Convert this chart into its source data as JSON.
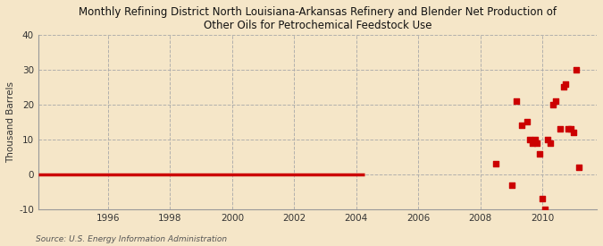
{
  "title": "Monthly Refining District North Louisiana-Arkansas Refinery and Blender Net Production of\nOther Oils for Petrochemical Feedstock Use",
  "ylabel": "Thousand Barrels",
  "source": "Source: U.S. Energy Information Administration",
  "fig_bg_color": "#f5e6c8",
  "plot_bg_color": "#f5e6c8",
  "ylim": [
    -10,
    40
  ],
  "xlim_start": 1993.75,
  "xlim_end": 2011.75,
  "yticks": [
    -10,
    0,
    10,
    20,
    30,
    40
  ],
  "xticks": [
    1996,
    1998,
    2000,
    2002,
    2004,
    2006,
    2008,
    2010
  ],
  "line_color": "#cc0000",
  "dot_color": "#cc0000",
  "line_data_x": [
    1993.75,
    2004.25
  ],
  "line_data_y": [
    0,
    0
  ],
  "scatter_data": [
    [
      2008.5,
      3
    ],
    [
      2009.0,
      -3
    ],
    [
      2009.17,
      21
    ],
    [
      2009.33,
      14
    ],
    [
      2009.5,
      15
    ],
    [
      2009.58,
      10
    ],
    [
      2009.67,
      9
    ],
    [
      2009.75,
      10
    ],
    [
      2009.83,
      9
    ],
    [
      2009.92,
      6
    ],
    [
      2010.0,
      -7
    ],
    [
      2010.08,
      -10
    ],
    [
      2010.17,
      10
    ],
    [
      2010.25,
      9
    ],
    [
      2010.33,
      20
    ],
    [
      2010.42,
      21
    ],
    [
      2010.58,
      13
    ],
    [
      2010.67,
      25
    ],
    [
      2010.75,
      26
    ],
    [
      2010.83,
      13
    ],
    [
      2010.92,
      13
    ],
    [
      2011.0,
      12
    ],
    [
      2011.08,
      30
    ],
    [
      2011.17,
      2
    ]
  ]
}
